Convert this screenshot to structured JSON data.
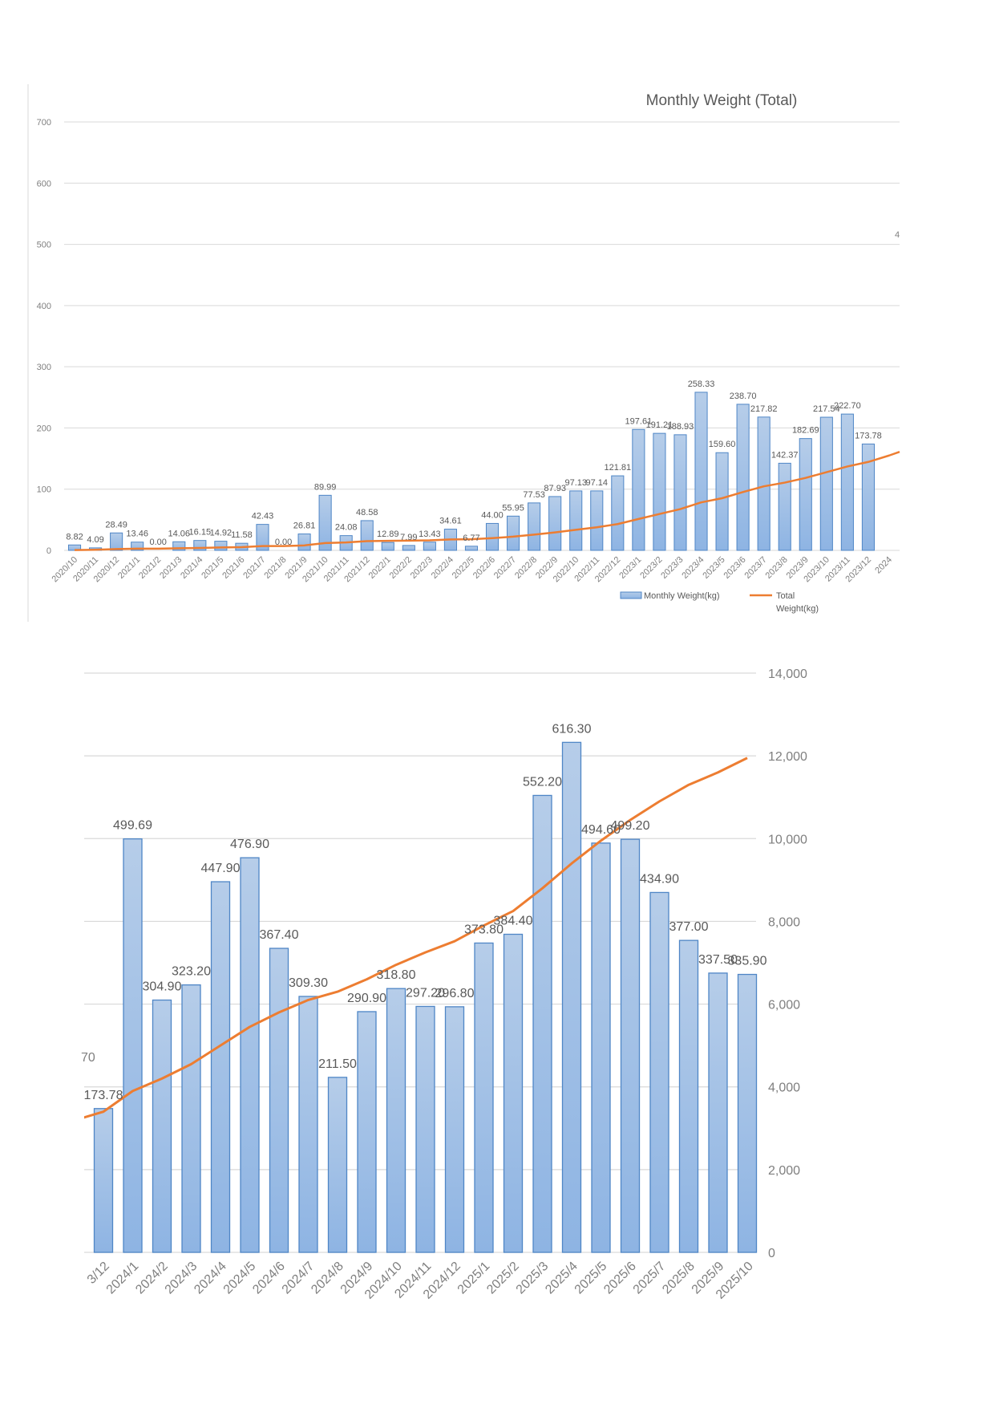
{
  "colors": {
    "bar_fill_top": "#b6cde9",
    "bar_fill_bottom": "#8eb4e3",
    "bar_stroke": "#4f86c6",
    "line": "#ed7d31",
    "grid": "#d9d9d9",
    "axis_text": "#7f7f7f",
    "label_text": "#595959"
  },
  "chart_data": [
    {
      "type": "bar",
      "title": "Monthly Weight (Total)",
      "categories": [
        "2020/10",
        "2020/11",
        "2020/12",
        "2021/1",
        "2021/2",
        "2021/3",
        "2021/4",
        "2021/5",
        "2021/6",
        "2021/7",
        "2021/8",
        "2021/9",
        "2021/10",
        "2021/11",
        "2021/12",
        "2022/1",
        "2022/2",
        "2022/3",
        "2022/4",
        "2022/5",
        "2022/6",
        "2022/7",
        "2022/8",
        "2022/9",
        "2022/10",
        "2022/11",
        "2022/12",
        "2023/1",
        "2023/2",
        "2023/3",
        "2023/4",
        "2023/5",
        "2023/6",
        "2023/7",
        "2023/8",
        "2023/9",
        "2023/10",
        "2023/11",
        "2023/12",
        "2024"
      ],
      "series": [
        {
          "name": "Monthly Weight(kg)",
          "kind": "bar",
          "values": [
            8.82,
            4.09,
            28.49,
            13.46,
            0.0,
            14.06,
            16.15,
            14.92,
            11.58,
            42.43,
            0.0,
            26.81,
            89.99,
            24.08,
            48.58,
            12.89,
            7.99,
            13.43,
            34.61,
            6.77,
            44.0,
            55.95,
            77.53,
            87.93,
            97.13,
            97.14,
            121.81,
            197.61,
            191.21,
            188.93,
            258.33,
            159.6,
            238.7,
            217.82,
            142.37,
            182.69,
            217.54,
            222.7,
            173.78,
            null
          ],
          "labels": [
            "8.82",
            "4.09",
            "28.49",
            "13.46",
            "0.00",
            "14.06",
            "16.15",
            "14.92",
            "11.58",
            "42.43",
            "0.00",
            "26.81",
            "89.99",
            "24.08",
            "48.58",
            "12.89",
            "7.99",
            "13.43",
            "34.61",
            "6.77",
            "44.00",
            "55.95",
            "77.53",
            "87.93",
            "97.13",
            "97.14",
            "121.81",
            "197.61",
            "191.21",
            "188.93",
            "258.33",
            "159.60",
            "238.70",
            "217.82",
            "142.37",
            "182.69",
            "217.54",
            "222.70",
            "173.78",
            ""
          ]
        },
        {
          "name": "Total Weight(kg)",
          "kind": "line",
          "values": [
            0.5,
            1.0,
            2.2,
            2.8,
            2.8,
            3.4,
            4.0,
            4.7,
            5.2,
            7.0,
            7.0,
            8.1,
            11.9,
            12.9,
            15.0,
            15.5,
            15.9,
            16.4,
            17.9,
            18.2,
            20.0,
            22.4,
            25.7,
            29.4,
            33.6,
            37.7,
            42.9,
            51.3,
            59.4,
            67.4,
            78.4,
            85.2,
            95.3,
            104.6,
            110.7,
            118.4,
            127.7,
            137.1,
            144.5,
            155.0
          ]
        }
      ],
      "legend": [
        "Monthly Weight(kg)",
        "Total",
        "Weight(kg)"
      ],
      "cut_label": "4",
      "ylim": [
        0,
        700
      ],
      "y_ticks": [
        "0",
        "100",
        "200",
        "300",
        "400",
        "500",
        "600",
        "700"
      ],
      "legend_position": "bottom-right"
    },
    {
      "type": "bar",
      "title": "",
      "categories": [
        "3/12",
        "2024/1",
        "2024/2",
        "2024/3",
        "2024/4",
        "2024/5",
        "2024/6",
        "2024/7",
        "2024/8",
        "2024/9",
        "2024/10",
        "2024/11",
        "2024/12",
        "2025/1",
        "2025/2",
        "2025/3",
        "2025/4",
        "2025/5",
        "2025/6",
        "2025/7",
        "2025/8",
        "2025/9",
        "2025/10"
      ],
      "series": [
        {
          "name": "Monthly Weight(kg)",
          "kind": "bar",
          "values": [
            173.78,
            499.69,
            304.9,
            323.2,
            447.9,
            476.9,
            367.4,
            309.3,
            211.5,
            290.9,
            318.8,
            297.2,
            296.8,
            373.8,
            384.4,
            552.2,
            616.3,
            494.6,
            499.2,
            434.9,
            377.0,
            337.5,
            335.9
          ],
          "labels": [
            "173.78",
            "499.69",
            "304.90",
            "323.20",
            "447.90",
            "476.90",
            "367.40",
            "309.30",
            "211.50",
            "290.90",
            "318.80",
            "297.20",
            "296.80",
            "373.80",
            "384.40",
            "552.20",
            "616.30",
            "494.60",
            "499.20",
            "434.90",
            "377.00",
            "337.50",
            "335.90"
          ]
        },
        {
          "name": "Total Weight(kg)",
          "kind": "line",
          "values": [
            3400,
            3900,
            4200,
            4550,
            5000,
            5450,
            5800,
            6100,
            6300,
            6600,
            6950,
            7250,
            7520,
            7900,
            8250,
            8800,
            9400,
            9950,
            10450,
            10900,
            11300,
            11600,
            11950
          ]
        }
      ],
      "cut_label": "70",
      "line_start_value": 3250,
      "ylim_left": [
        0,
        700
      ],
      "ylim_right": [
        0,
        14000
      ],
      "y_ticks_right": [
        "0",
        "2,000",
        "4,000",
        "6,000",
        "8,000",
        "10,000",
        "12,000",
        "14,000"
      ]
    }
  ]
}
